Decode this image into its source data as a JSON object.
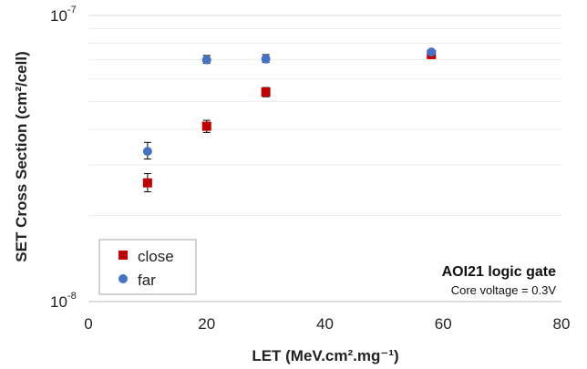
{
  "chart_data": {
    "type": "scatter",
    "title": "",
    "xlabel": "LET (MeV.cm².mg⁻¹)",
    "ylabel": "SET Cross Section (cm²/cell)",
    "xlim": [
      0,
      80
    ],
    "ylim": [
      1e-08,
      1e-07
    ],
    "y_scale": "log",
    "x_ticks": [
      0,
      20,
      40,
      60,
      80
    ],
    "x_tick_labels": [
      "0",
      "20",
      "40",
      "60",
      "80"
    ],
    "y_tick_labels": [
      {
        "value": 1e-08,
        "base": "10",
        "exp": "-8"
      },
      {
        "value": 1e-07,
        "base": "10",
        "exp": "-7"
      }
    ],
    "grid": "horizontal",
    "legend_position": "bottom-left",
    "series": [
      {
        "name": "close",
        "marker": "square",
        "color": "#c00000",
        "points": [
          {
            "x": 10,
            "y": 2.6e-08,
            "err_low": 2.42e-08,
            "err_high": 2.8e-08
          },
          {
            "x": 20,
            "y": 4.1e-08,
            "err_low": 3.9e-08,
            "err_high": 4.3e-08
          },
          {
            "x": 30,
            "y": 5.4e-08,
            "err_low": 5.2e-08,
            "err_high": 5.6e-08
          },
          {
            "x": 58,
            "y": 7.3e-08,
            "err_low": 7.2e-08,
            "err_high": 7.4e-08
          }
        ]
      },
      {
        "name": "far",
        "marker": "circle",
        "color": "#4472c4",
        "points": [
          {
            "x": 10,
            "y": 3.35e-08,
            "err_low": 3.15e-08,
            "err_high": 3.6e-08
          },
          {
            "x": 20,
            "y": 7e-08,
            "err_low": 6.8e-08,
            "err_high": 7.25e-08
          },
          {
            "x": 30,
            "y": 7.05e-08,
            "err_low": 6.85e-08,
            "err_high": 7.3e-08
          },
          {
            "x": 58,
            "y": 7.45e-08,
            "err_low": 7.35e-08,
            "err_high": 7.55e-08
          }
        ]
      }
    ],
    "annotations": [
      "AOI21 logic gate",
      "Core voltage = 0.3V"
    ]
  }
}
